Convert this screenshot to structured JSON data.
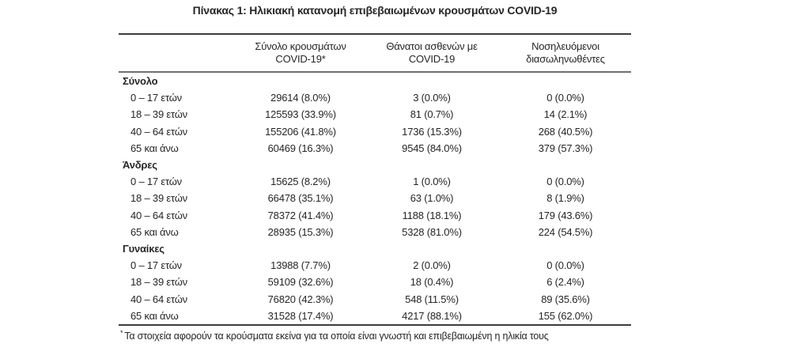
{
  "title": "Πίνακας 1: Ηλικιακή κατανομή επιβεβαιωμένων κρουσμάτων COVID-19",
  "colors": {
    "background": "#ffffff",
    "text": "#262626",
    "outer_rule": "#3c3c3c",
    "header_rule": "#6e6e6e"
  },
  "table": {
    "columns": [
      {
        "line1": "Σύνολο κρουσμάτων",
        "line2": "COVID-19*"
      },
      {
        "line1": "Θάνατοι ασθενών με",
        "line2": "COVID-19"
      },
      {
        "line1": "Νοσηλευόμενοι",
        "line2": "διασωληνωθέντες"
      }
    ],
    "sections": [
      {
        "label": "Σύνολο",
        "rows": [
          {
            "label": "0 – 17 ετών",
            "cases": "29614 (8.0%)",
            "deaths": "3 (0.0%)",
            "intubated": "0 (0.0%)"
          },
          {
            "label": "18 – 39 ετών",
            "cases": "125593 (33.9%)",
            "deaths": "81 (0.7%)",
            "intubated": "14 (2.1%)"
          },
          {
            "label": "40 – 64 ετών",
            "cases": "155206 (41.8%)",
            "deaths": "1736 (15.3%)",
            "intubated": "268 (40.5%)"
          },
          {
            "label": "65 και άνω",
            "cases": "60469 (16.3%)",
            "deaths": "9545 (84.0%)",
            "intubated": "379 (57.3%)"
          }
        ]
      },
      {
        "label": "Άνδρες",
        "rows": [
          {
            "label": "0 – 17 ετών",
            "cases": "15625 (8.2%)",
            "deaths": "1 (0.0%)",
            "intubated": "0 (0.0%)"
          },
          {
            "label": "18 – 39 ετών",
            "cases": "66478 (35.1%)",
            "deaths": "63 (1.0%)",
            "intubated": "8 (1.9%)"
          },
          {
            "label": "40 – 64 ετών",
            "cases": "78372 (41.4%)",
            "deaths": "1188 (18.1%)",
            "intubated": "179 (43.6%)"
          },
          {
            "label": "65 και άνω",
            "cases": "28935 (15.3%)",
            "deaths": "5328 (81.0%)",
            "intubated": "224 (54.5%)"
          }
        ]
      },
      {
        "label": "Γυναίκες",
        "rows": [
          {
            "label": "0 – 17 ετών",
            "cases": "13988 (7.7%)",
            "deaths": "2 (0.0%)",
            "intubated": "0 (0.0%)"
          },
          {
            "label": "18 – 39 ετών",
            "cases": "59109 (32.6%)",
            "deaths": "18 (0.4%)",
            "intubated": "6 (2.4%)"
          },
          {
            "label": "40 – 64 ετών",
            "cases": "76820 (42.3%)",
            "deaths": "548 (11.5%)",
            "intubated": "89 (35.6%)"
          },
          {
            "label": "65 και άνω",
            "cases": "31528 (17.4%)",
            "deaths": "4217 (88.1%)",
            "intubated": "155 (62.0%)"
          }
        ]
      }
    ]
  },
  "footnote": {
    "marker": "*",
    "text": "Τα στοιχεία αφορούν τα κρούσματα εκείνα για τα οποία είναι γνωστή και επιβεβαιωμένη η ηλικία τους"
  }
}
